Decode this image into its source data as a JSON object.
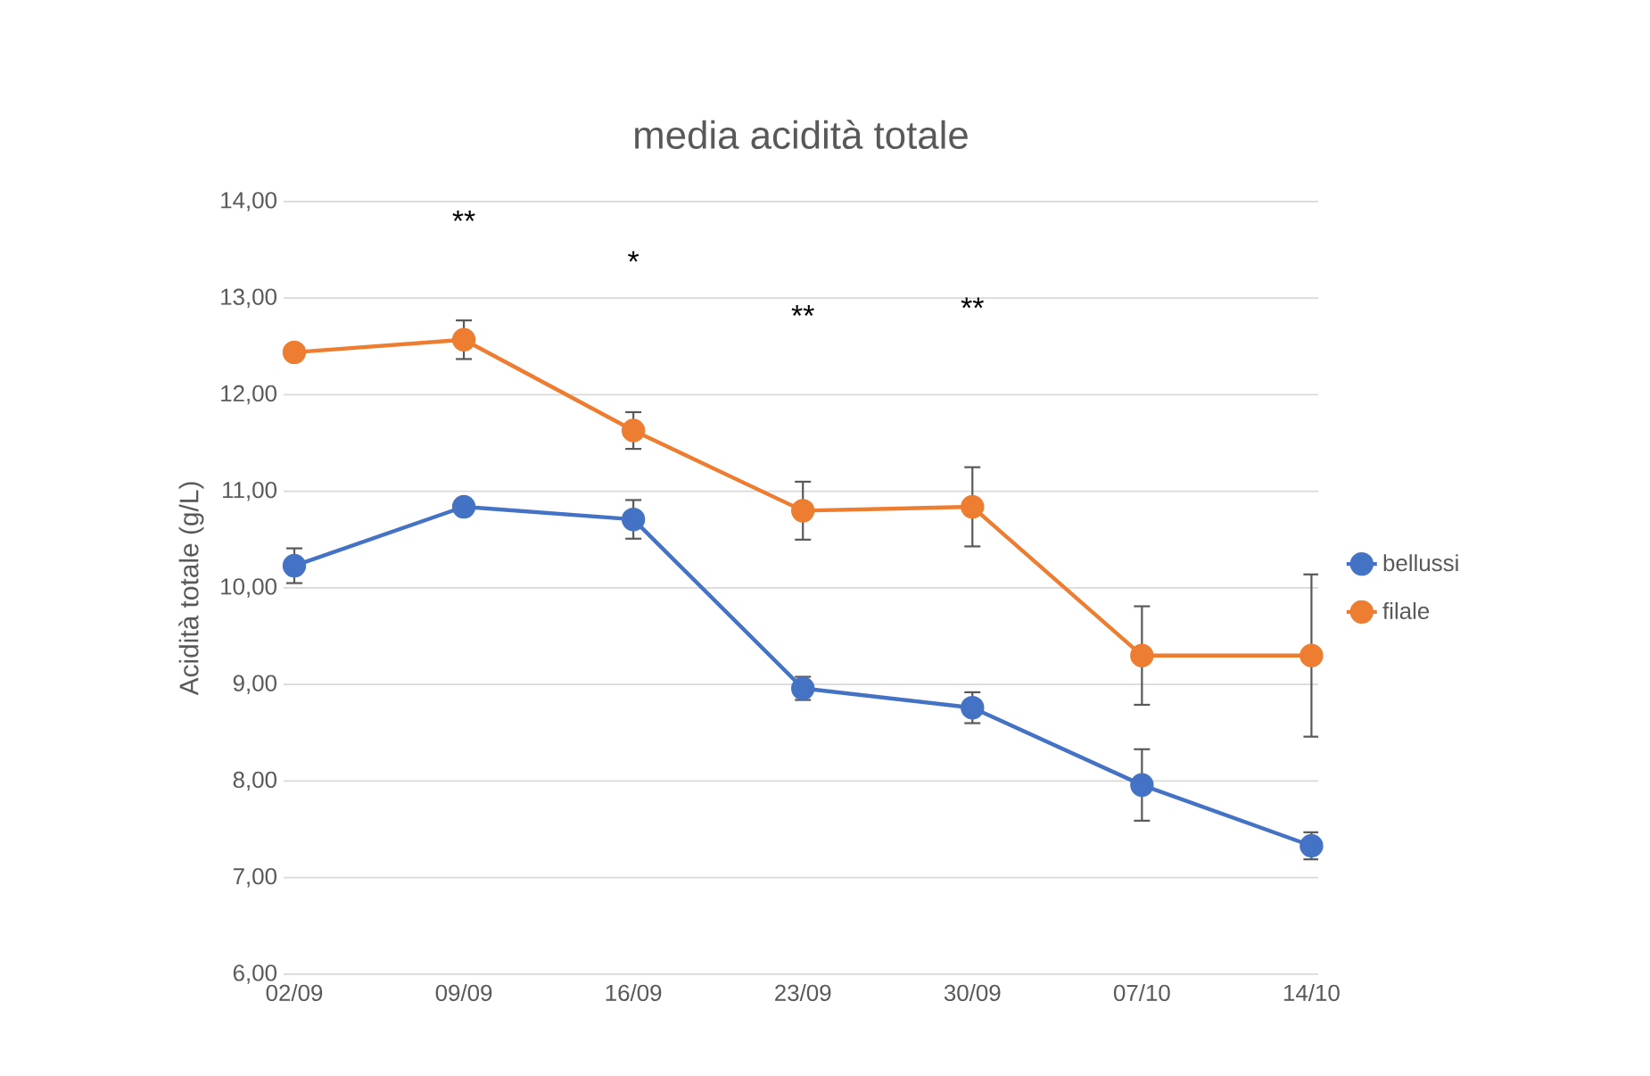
{
  "chart_data": {
    "type": "line",
    "title": "media acidità totale",
    "ylabel": "Acidità totale (g/L)",
    "categories": [
      "02/09",
      "09/09",
      "16/09",
      "23/09",
      "30/09",
      "07/10",
      "14/10"
    ],
    "series": [
      {
        "name": "bellussi",
        "color": "#4472c4",
        "values": [
          10.23,
          10.84,
          10.71,
          8.96,
          8.76,
          7.96,
          7.33
        ],
        "errors": [
          0.18,
          null,
          0.2,
          0.12,
          0.16,
          0.37,
          0.14
        ]
      },
      {
        "name": "filale",
        "color": "#ed7d31",
        "values": [
          12.44,
          12.57,
          11.63,
          10.8,
          10.84,
          9.3,
          9.3
        ],
        "errors": [
          null,
          0.2,
          0.19,
          0.3,
          0.41,
          0.51,
          0.84
        ]
      }
    ],
    "ylim": [
      6,
      14
    ],
    "yticks": [
      {
        "value": 6,
        "label": "6,00"
      },
      {
        "value": 7,
        "label": "7,00"
      },
      {
        "value": 8,
        "label": "8,00"
      },
      {
        "value": 9,
        "label": "9,00"
      },
      {
        "value": 10,
        "label": "10,00"
      },
      {
        "value": 11,
        "label": "11,00"
      },
      {
        "value": 12,
        "label": "12,00"
      },
      {
        "value": 13,
        "label": "13,00"
      },
      {
        "value": 14,
        "label": "14,00"
      }
    ],
    "annotations": [
      "**",
      "*",
      "**",
      "**"
    ],
    "grid": "y",
    "legend": "right",
    "marker": "circle",
    "line_style": "solid"
  }
}
